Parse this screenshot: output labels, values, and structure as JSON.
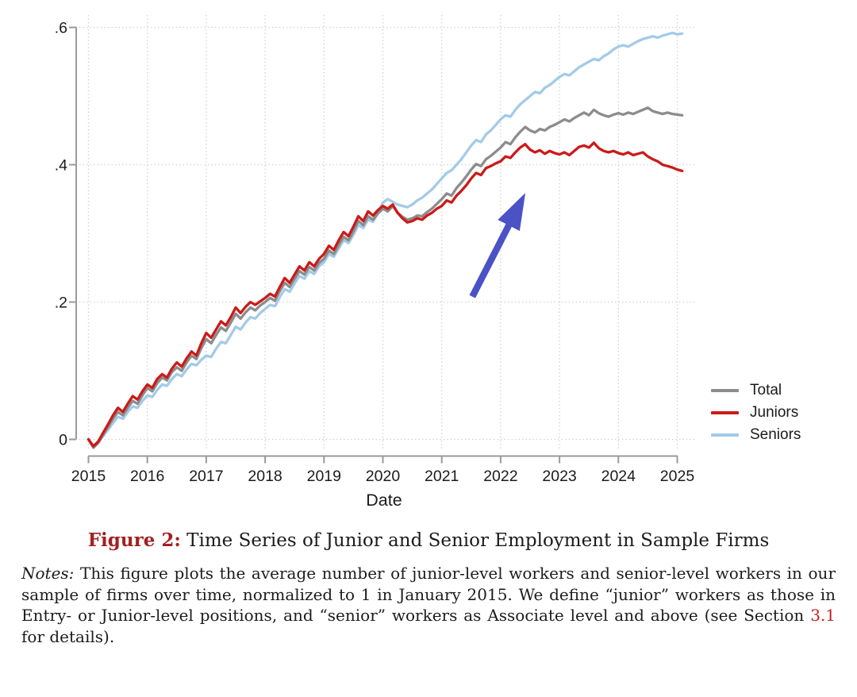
{
  "figure": {
    "caption_label": "Figure 2:",
    "caption_title": " Time Series of Junior and Senior Employment in Sample Firms",
    "notes_label": "Notes:",
    "notes_before_link": " This figure plots the average number of junior-level workers and senior-level workers in our sample of firms over time, normalized to 1 in January 2015. We define “junior” workers as those in Entry- or Junior-level positions, and “senior” workers as Associate level and above (see Section ",
    "notes_link": "3.1",
    "notes_after_link": " for details)."
  },
  "colors": {
    "axis": "#9a9a9a",
    "grid": "#cfcfcf",
    "tick_text": "#1b1b1b",
    "caption_label": "#a32121",
    "section_link": "#bf211e",
    "arrow": "#4a52c6"
  },
  "chart_data": {
    "type": "line",
    "title": "",
    "xlabel": "Date",
    "ylabel": "",
    "x_start": 2015.0,
    "x_step": 0.08333,
    "x_unit": "monthly",
    "xlim": [
      2014.8,
      2025.3
    ],
    "ylim": [
      -0.025,
      0.62
    ],
    "x_ticks": [
      2015,
      2016,
      2017,
      2018,
      2019,
      2020,
      2021,
      2022,
      2023,
      2024,
      2025
    ],
    "y_ticks": [
      0,
      0.2,
      0.4,
      0.6
    ],
    "y_tick_labels": [
      "0",
      ".2",
      ".4",
      ".6"
    ],
    "grid": "dotted both axes",
    "legend_position": "right outside plot",
    "normalization_note": "values are relative to 1 in January 2015 (0 = baseline)",
    "series": [
      {
        "name": "Total",
        "color": "#8c8c8c",
        "values": [
          0.0,
          -0.012,
          -0.005,
          0.007,
          0.018,
          0.03,
          0.04,
          0.035,
          0.046,
          0.056,
          0.052,
          0.064,
          0.075,
          0.07,
          0.082,
          0.09,
          0.086,
          0.098,
          0.105,
          0.1,
          0.112,
          0.122,
          0.117,
          0.133,
          0.146,
          0.14,
          0.152,
          0.163,
          0.158,
          0.17,
          0.183,
          0.176,
          0.185,
          0.192,
          0.188,
          0.195,
          0.2,
          0.206,
          0.202,
          0.216,
          0.228,
          0.222,
          0.234,
          0.245,
          0.24,
          0.251,
          0.246,
          0.257,
          0.263,
          0.275,
          0.27,
          0.283,
          0.295,
          0.29,
          0.303,
          0.318,
          0.312,
          0.325,
          0.32,
          0.329,
          0.336,
          0.332,
          0.34,
          0.33,
          0.324,
          0.32,
          0.322,
          0.326,
          0.325,
          0.331,
          0.336,
          0.343,
          0.35,
          0.358,
          0.355,
          0.366,
          0.374,
          0.383,
          0.393,
          0.401,
          0.398,
          0.408,
          0.413,
          0.419,
          0.425,
          0.433,
          0.43,
          0.44,
          0.448,
          0.455,
          0.45,
          0.447,
          0.452,
          0.45,
          0.455,
          0.458,
          0.462,
          0.466,
          0.463,
          0.468,
          0.472,
          0.476,
          0.472,
          0.48,
          0.475,
          0.472,
          0.47,
          0.473,
          0.475,
          0.473,
          0.476,
          0.474,
          0.477,
          0.48,
          0.483,
          0.478,
          0.476,
          0.474,
          0.476,
          0.474,
          0.473,
          0.472
        ]
      },
      {
        "name": "Juniors",
        "color": "#cc1a1a",
        "values": [
          0.0,
          -0.01,
          -0.003,
          0.01,
          0.022,
          0.035,
          0.046,
          0.04,
          0.052,
          0.063,
          0.058,
          0.07,
          0.08,
          0.075,
          0.088,
          0.095,
          0.09,
          0.103,
          0.112,
          0.106,
          0.118,
          0.128,
          0.122,
          0.14,
          0.155,
          0.148,
          0.16,
          0.172,
          0.166,
          0.178,
          0.192,
          0.184,
          0.193,
          0.2,
          0.196,
          0.201,
          0.206,
          0.212,
          0.208,
          0.222,
          0.235,
          0.228,
          0.24,
          0.252,
          0.246,
          0.258,
          0.252,
          0.263,
          0.27,
          0.282,
          0.276,
          0.29,
          0.302,
          0.296,
          0.31,
          0.325,
          0.318,
          0.332,
          0.326,
          0.334,
          0.34,
          0.336,
          0.342,
          0.33,
          0.322,
          0.316,
          0.318,
          0.322,
          0.32,
          0.326,
          0.33,
          0.336,
          0.34,
          0.348,
          0.345,
          0.355,
          0.362,
          0.37,
          0.38,
          0.388,
          0.385,
          0.395,
          0.398,
          0.402,
          0.405,
          0.412,
          0.41,
          0.418,
          0.425,
          0.43,
          0.422,
          0.418,
          0.421,
          0.416,
          0.42,
          0.417,
          0.415,
          0.418,
          0.414,
          0.42,
          0.426,
          0.428,
          0.425,
          0.432,
          0.424,
          0.42,
          0.418,
          0.42,
          0.417,
          0.415,
          0.418,
          0.414,
          0.416,
          0.418,
          0.412,
          0.408,
          0.405,
          0.4,
          0.398,
          0.396,
          0.393,
          0.391
        ]
      },
      {
        "name": "Seniors",
        "color": "#a3cbe8",
        "values": [
          0.0,
          -0.01,
          -0.004,
          0.005,
          0.014,
          0.024,
          0.033,
          0.03,
          0.04,
          0.048,
          0.046,
          0.056,
          0.064,
          0.062,
          0.072,
          0.08,
          0.078,
          0.088,
          0.095,
          0.092,
          0.102,
          0.11,
          0.108,
          0.116,
          0.122,
          0.12,
          0.132,
          0.142,
          0.14,
          0.152,
          0.164,
          0.16,
          0.17,
          0.178,
          0.176,
          0.184,
          0.19,
          0.196,
          0.194,
          0.207,
          0.219,
          0.215,
          0.227,
          0.238,
          0.234,
          0.245,
          0.241,
          0.252,
          0.258,
          0.27,
          0.266,
          0.278,
          0.29,
          0.286,
          0.298,
          0.312,
          0.308,
          0.32,
          0.317,
          0.33,
          0.345,
          0.35,
          0.346,
          0.342,
          0.34,
          0.338,
          0.342,
          0.348,
          0.352,
          0.358,
          0.364,
          0.372,
          0.38,
          0.388,
          0.392,
          0.4,
          0.408,
          0.418,
          0.428,
          0.436,
          0.433,
          0.444,
          0.45,
          0.458,
          0.466,
          0.472,
          0.47,
          0.48,
          0.488,
          0.494,
          0.5,
          0.506,
          0.504,
          0.512,
          0.516,
          0.522,
          0.528,
          0.532,
          0.53,
          0.536,
          0.542,
          0.546,
          0.55,
          0.554,
          0.552,
          0.558,
          0.562,
          0.568,
          0.572,
          0.574,
          0.572,
          0.576,
          0.58,
          0.583,
          0.585,
          0.587,
          0.585,
          0.588,
          0.59,
          0.592,
          0.59,
          0.591
        ]
      }
    ],
    "annotation_arrow": {
      "from_x": 2021.52,
      "from_y": 0.208,
      "to_x": 2022.42,
      "to_y": 0.359,
      "color": "#4a52c6"
    }
  }
}
